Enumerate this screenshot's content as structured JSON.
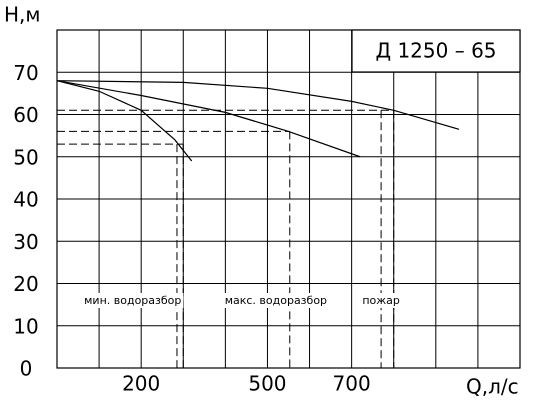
{
  "chart_data": {
    "type": "line",
    "title": "Д 1250 – 65",
    "y_label": "H,м",
    "x_label": "Q,л/с",
    "xlim": [
      0,
      1100
    ],
    "ylim": [
      0,
      80
    ],
    "xticks": [
      200,
      500,
      700
    ],
    "x_gridlines": [
      100,
      200,
      300,
      400,
      500,
      600,
      700,
      800,
      900,
      1000
    ],
    "yticks": [
      0,
      10,
      20,
      30,
      40,
      50,
      60,
      70
    ],
    "grid": true,
    "color": "#000000",
    "series": [
      {
        "x": [
          0,
          300,
          500,
          700,
          800,
          955
        ],
        "values": [
          68,
          67.6,
          66.2,
          63.1,
          61,
          56.5
        ]
      },
      {
        "x": [
          0,
          200,
          400,
          550,
          720
        ],
        "values": [
          68,
          64.5,
          60.5,
          56,
          50
        ]
      },
      {
        "x": [
          0,
          100,
          200,
          280,
          320
        ],
        "values": [
          68,
          65.5,
          61,
          54,
          49
        ]
      }
    ],
    "reference_lines": [
      {
        "h": 61,
        "q": [
          770,
          800
        ]
      },
      {
        "h": 56,
        "q": [
          553
        ]
      },
      {
        "h": 53,
        "q": [
          285,
          300
        ]
      }
    ],
    "annotations": [
      {
        "text": "мин. водоразбор",
        "q": 180
      },
      {
        "text": "макс. водоразбор",
        "q": 520
      },
      {
        "text": "пожар",
        "q": 770
      }
    ]
  }
}
